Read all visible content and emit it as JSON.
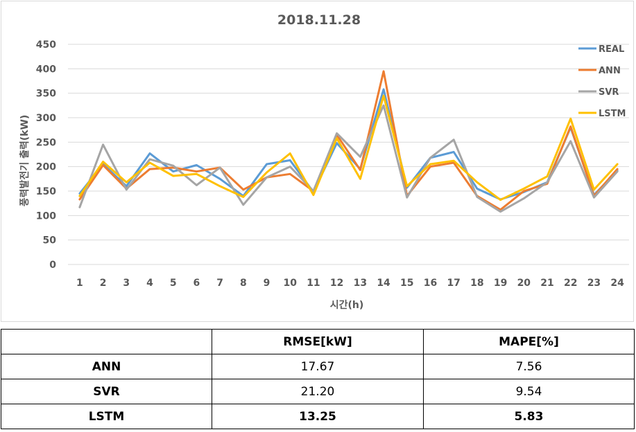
{
  "chart_data": {
    "type": "line",
    "title": "2018.11.28",
    "xlabel": "시간(h)",
    "ylabel": "풍력발전기 출력(kW)",
    "categories": [
      "1",
      "2",
      "3",
      "4",
      "5",
      "6",
      "7",
      "8",
      "9",
      "10",
      "11",
      "12",
      "13",
      "14",
      "15",
      "16",
      "17",
      "18",
      "19",
      "20",
      "21",
      "22",
      "23",
      "24"
    ],
    "ylim": [
      0,
      450
    ],
    "yticks": [
      0,
      50,
      100,
      150,
      200,
      250,
      300,
      350,
      400,
      450
    ],
    "grid": "horizontal",
    "legend_position": "right",
    "series": [
      {
        "name": "REAL",
        "color": "#5B9BD5",
        "values": [
          145,
          205,
          160,
          227,
          190,
          203,
          175,
          140,
          205,
          213,
          148,
          248,
          195,
          358,
          157,
          218,
          230,
          155,
          133,
          148,
          168,
          280,
          142,
          192
        ]
      },
      {
        "name": "ANN",
        "color": "#ED7D31",
        "values": [
          133,
          203,
          155,
          195,
          198,
          190,
          198,
          153,
          178,
          185,
          150,
          265,
          193,
          395,
          140,
          200,
          208,
          140,
          112,
          150,
          165,
          282,
          140,
          195
        ]
      },
      {
        "name": "SVR",
        "color": "#A5A5A5",
        "values": [
          117,
          245,
          153,
          215,
          202,
          162,
          198,
          122,
          178,
          200,
          150,
          268,
          220,
          325,
          137,
          218,
          255,
          138,
          108,
          135,
          168,
          252,
          137,
          190
        ]
      },
      {
        "name": "LSTM",
        "color": "#FFC000",
        "values": [
          140,
          210,
          168,
          208,
          181,
          185,
          160,
          138,
          188,
          227,
          142,
          258,
          175,
          345,
          160,
          205,
          212,
          168,
          132,
          155,
          180,
          298,
          153,
          205
        ]
      }
    ]
  },
  "table": {
    "headers": [
      "",
      "RMSE[kW]",
      "MAPE[%]"
    ],
    "rows": [
      {
        "model": "ANN",
        "rmse": "17.67",
        "mape": "7.56"
      },
      {
        "model": "SVR",
        "rmse": "21.20",
        "mape": "9.54"
      },
      {
        "model": "LSTM",
        "rmse": "13.25",
        "mape": "5.83"
      }
    ]
  }
}
